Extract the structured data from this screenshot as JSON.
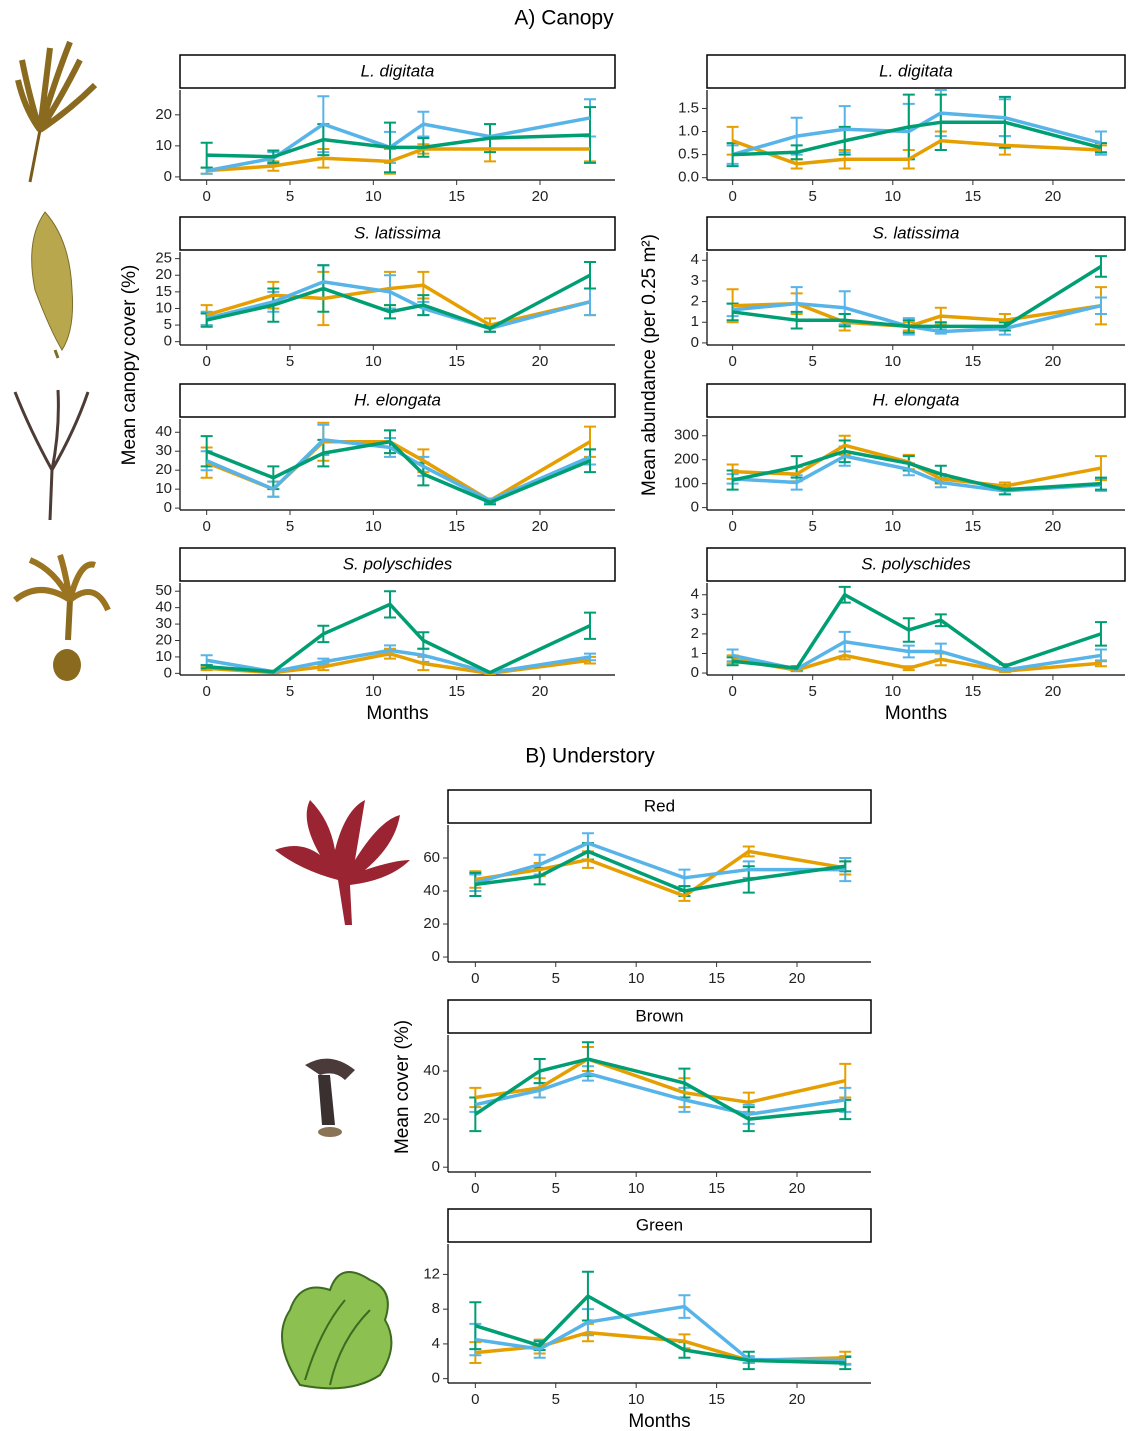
{
  "headings": {
    "canopy": "A) Canopy",
    "understory": "B) Understory"
  },
  "ylabels": {
    "canopy_cover": "Mean canopy cover (%)",
    "canopy_abundance": "Mean abundance (per 0.25 m²)",
    "understory_cover": "Mean cover (%)"
  },
  "chart_data": [
    {
      "type": "line",
      "title": "L. digitata",
      "x": [
        0,
        4,
        7,
        11,
        13,
        17,
        23
      ],
      "xlim": [
        -1.6,
        24.5
      ],
      "xticks": [
        0,
        5,
        10,
        15,
        20
      ],
      "ylim": [
        -1,
        28
      ],
      "yticks": [
        0,
        10,
        20
      ],
      "series": [
        {
          "color": "#E69F00",
          "values": [
            2,
            3.5,
            6,
            5,
            9,
            9,
            9
          ],
          "errors": [
            1,
            1.5,
            3,
            4,
            1.5,
            4,
            4
          ]
        },
        {
          "color": "#56B4E9",
          "values": [
            2,
            6,
            17,
            9.5,
            17,
            13,
            19
          ],
          "errors": [
            1,
            2,
            9,
            5,
            4,
            4,
            6
          ]
        },
        {
          "color": "#009E73",
          "values": [
            7,
            6.5,
            12,
            9.5,
            9.5,
            12.5,
            13.5
          ],
          "errors": [
            4,
            2,
            5,
            8,
            3,
            4.5,
            9
          ]
        }
      ]
    },
    {
      "type": "line",
      "title": "L. digitata",
      "x": [
        0,
        4,
        7,
        11,
        13,
        17,
        23
      ],
      "xlim": [
        -1.6,
        24.5
      ],
      "xticks": [
        0,
        5,
        10,
        15,
        20
      ],
      "ylim": [
        -0.05,
        1.9
      ],
      "yticks": [
        {
          "value": 0,
          "label": "0.0"
        },
        0.5,
        {
          "value": 1,
          "label": "1.0"
        },
        1.5
      ],
      "series": [
        {
          "color": "#E69F00",
          "values": [
            0.8,
            0.3,
            0.4,
            0.4,
            0.8,
            0.7,
            0.6
          ],
          "errors": [
            0.3,
            0.1,
            0.2,
            0.2,
            0.2,
            0.2,
            0.1
          ]
        },
        {
          "color": "#56B4E9",
          "values": [
            0.5,
            0.9,
            1.05,
            1.0,
            1.4,
            1.3,
            0.75
          ],
          "errors": [
            0.2,
            0.4,
            0.5,
            0.6,
            0.5,
            0.4,
            0.25
          ]
        },
        {
          "color": "#009E73",
          "values": [
            0.5,
            0.55,
            0.8,
            1.1,
            1.2,
            1.2,
            0.65
          ],
          "errors": [
            0.25,
            0.15,
            0.3,
            0.7,
            0.6,
            0.55,
            0.1
          ]
        }
      ]
    },
    {
      "type": "line",
      "title": "S. latissima",
      "x": [
        0,
        4,
        7,
        11,
        13,
        17,
        23
      ],
      "xlim": [
        -1.6,
        24.5
      ],
      "xticks": [
        0,
        5,
        10,
        15,
        20
      ],
      "ylim": [
        -1,
        27
      ],
      "yticks": [
        0,
        5,
        10,
        15,
        20,
        25
      ],
      "series": [
        {
          "color": "#E69F00",
          "values": [
            8,
            14,
            13,
            16,
            17,
            5,
            12
          ],
          "errors": [
            3,
            4,
            8,
            5,
            4,
            2,
            4
          ]
        },
        {
          "color": "#56B4E9",
          "values": [
            7,
            12,
            18,
            15,
            10,
            4,
            12
          ],
          "errors": [
            2,
            3,
            5,
            5,
            2,
            1,
            4
          ]
        },
        {
          "color": "#009E73",
          "values": [
            6.5,
            11,
            16,
            9,
            11,
            4,
            20
          ],
          "errors": [
            2,
            5,
            7,
            2,
            3,
            1,
            4
          ]
        }
      ]
    },
    {
      "type": "line",
      "title": "S. latissima",
      "x": [
        0,
        4,
        7,
        11,
        13,
        17,
        23
      ],
      "xlim": [
        -1.6,
        24.5
      ],
      "xticks": [
        0,
        5,
        10,
        15,
        20
      ],
      "ylim": [
        -0.1,
        4.4
      ],
      "yticks": [
        0,
        1,
        2,
        3,
        4
      ],
      "series": [
        {
          "color": "#E69F00",
          "values": [
            1.8,
            1.9,
            1.0,
            0.8,
            1.3,
            1.1,
            1.8
          ],
          "errors": [
            0.8,
            0.5,
            0.4,
            0.2,
            0.4,
            0.3,
            0.9
          ]
        },
        {
          "color": "#56B4E9",
          "values": [
            1.6,
            1.9,
            1.7,
            0.8,
            0.55,
            0.7,
            1.8
          ],
          "errors": [
            0.3,
            0.8,
            0.8,
            0.4,
            0.1,
            0.3,
            0.4
          ]
        },
        {
          "color": "#009E73",
          "values": [
            1.5,
            1.1,
            1.1,
            0.8,
            0.8,
            0.8,
            3.7
          ],
          "errors": [
            0.4,
            0.4,
            0.3,
            0.3,
            0.2,
            0.2,
            0.5
          ]
        }
      ]
    },
    {
      "type": "line",
      "title": "H. elongata",
      "x": [
        0,
        4,
        7,
        11,
        13,
        17,
        23
      ],
      "xlim": [
        -1.6,
        24.5
      ],
      "xticks": [
        0,
        5,
        10,
        15,
        20
      ],
      "ylim": [
        -1,
        47
      ],
      "yticks": [
        0,
        10,
        20,
        30,
        40
      ],
      "series": [
        {
          "color": "#E69F00",
          "values": [
            24,
            10,
            35,
            35,
            25,
            4,
            35
          ],
          "errors": [
            8,
            4,
            10,
            6,
            6,
            1,
            8
          ]
        },
        {
          "color": "#56B4E9",
          "values": [
            25,
            10,
            36,
            32,
            22,
            4,
            27
          ],
          "errors": [
            5,
            4,
            8,
            5,
            5,
            1,
            4
          ]
        },
        {
          "color": "#009E73",
          "values": [
            30,
            16,
            29,
            35,
            18,
            3,
            25
          ],
          "errors": [
            8,
            6,
            7,
            6,
            6,
            1,
            6
          ]
        }
      ]
    },
    {
      "type": "line",
      "title": "H. elongata",
      "x": [
        0,
        4,
        7,
        11,
        13,
        17,
        23
      ],
      "xlim": [
        -1.6,
        24.5
      ],
      "xticks": [
        0,
        5,
        10,
        15,
        20
      ],
      "ylim": [
        -10,
        370
      ],
      "yticks": [
        0,
        100,
        200,
        300
      ],
      "series": [
        {
          "color": "#E69F00",
          "values": [
            150,
            140,
            260,
            190,
            120,
            90,
            165
          ],
          "errors": [
            30,
            30,
            40,
            30,
            20,
            15,
            50
          ]
        },
        {
          "color": "#56B4E9",
          "values": [
            120,
            105,
            215,
            160,
            105,
            70,
            95
          ],
          "errors": [
            20,
            30,
            40,
            25,
            20,
            15,
            25
          ]
        },
        {
          "color": "#009E73",
          "values": [
            115,
            170,
            235,
            185,
            140,
            75,
            100
          ],
          "errors": [
            40,
            45,
            45,
            30,
            35,
            20,
            25
          ]
        }
      ]
    },
    {
      "type": "line",
      "title": "S. polyschides",
      "xlabel": "Months",
      "x": [
        0,
        4,
        7,
        11,
        13,
        17,
        23
      ],
      "xlim": [
        -1.6,
        24.5
      ],
      "xticks": [
        0,
        5,
        10,
        15,
        20
      ],
      "ylim": [
        -1,
        55
      ],
      "yticks": [
        0,
        10,
        20,
        30,
        40,
        50
      ],
      "series": [
        {
          "color": "#E69F00",
          "values": [
            3,
            0.5,
            4,
            12,
            6,
            0,
            8
          ],
          "errors": [
            1,
            0.3,
            2,
            3,
            4,
            0.3,
            2
          ]
        },
        {
          "color": "#56B4E9",
          "values": [
            8,
            1,
            7,
            14,
            11,
            0.5,
            10
          ],
          "errors": [
            3,
            0.5,
            2,
            3,
            4,
            0.3,
            2
          ]
        },
        {
          "color": "#009E73",
          "values": [
            4,
            1,
            24,
            42,
            20,
            0.5,
            29
          ],
          "errors": [
            1,
            0.5,
            5,
            8,
            5,
            0.3,
            8
          ]
        }
      ]
    },
    {
      "type": "line",
      "title": "S. polyschides",
      "xlabel": "Months",
      "x": [
        0,
        4,
        7,
        11,
        13,
        17,
        23
      ],
      "xlim": [
        -1.6,
        24.5
      ],
      "xticks": [
        0,
        5,
        10,
        15,
        20
      ],
      "ylim": [
        -0.1,
        4.6
      ],
      "yticks": [
        0,
        1,
        2,
        3,
        4
      ],
      "series": [
        {
          "color": "#E69F00",
          "values": [
            0.7,
            0.15,
            0.9,
            0.25,
            0.7,
            0.1,
            0.5
          ],
          "errors": [
            0.2,
            0.05,
            0.2,
            0.1,
            0.3,
            0.05,
            0.15
          ]
        },
        {
          "color": "#56B4E9",
          "values": [
            0.9,
            0.2,
            1.6,
            1.1,
            1.1,
            0.15,
            0.9
          ],
          "errors": [
            0.3,
            0.1,
            0.5,
            0.3,
            0.4,
            0.05,
            0.3
          ]
        },
        {
          "color": "#009E73",
          "values": [
            0.6,
            0.25,
            4.0,
            2.2,
            2.7,
            0.35,
            2.0
          ],
          "errors": [
            0.2,
            0.1,
            0.4,
            0.6,
            0.3,
            0.1,
            0.6
          ]
        }
      ]
    },
    {
      "type": "line",
      "title": "Red",
      "x": [
        0,
        4,
        7,
        13,
        17,
        23
      ],
      "xlim": [
        -1.7,
        24.6
      ],
      "xticks": [
        0,
        5,
        10,
        15,
        20
      ],
      "ylim": [
        -3,
        80
      ],
      "yticks": [
        0,
        20,
        40,
        60
      ],
      "series": [
        {
          "color": "#E69F00",
          "values": [
            47,
            53,
            59,
            37,
            64,
            54
          ],
          "errors": [
            5,
            4,
            5,
            3,
            3,
            4
          ]
        },
        {
          "color": "#56B4E9",
          "values": [
            45,
            56,
            69,
            48,
            53,
            53
          ],
          "errors": [
            5,
            6,
            6,
            5,
            5,
            7
          ]
        },
        {
          "color": "#009E73",
          "values": [
            44,
            49,
            64,
            40,
            47,
            55
          ],
          "errors": [
            7,
            5,
            5,
            3,
            8,
            3
          ]
        }
      ]
    },
    {
      "type": "line",
      "title": "Brown",
      "x": [
        0,
        4,
        7,
        13,
        17,
        23
      ],
      "xlim": [
        -1.7,
        24.6
      ],
      "xticks": [
        0,
        5,
        10,
        15,
        20
      ],
      "ylim": [
        -2,
        55
      ],
      "yticks": [
        0,
        20,
        40
      ],
      "series": [
        {
          "color": "#E69F00",
          "values": [
            29,
            33,
            45,
            31,
            27,
            36
          ],
          "errors": [
            4,
            4,
            5,
            6,
            4,
            7
          ]
        },
        {
          "color": "#56B4E9",
          "values": [
            26,
            32,
            39,
            28,
            22,
            28
          ],
          "errors": [
            3,
            3,
            3,
            5,
            4,
            5
          ]
        },
        {
          "color": "#009E73",
          "values": [
            22,
            40,
            45,
            35,
            20,
            24
          ],
          "errors": [
            7,
            5,
            7,
            6,
            5,
            4
          ]
        }
      ]
    },
    {
      "type": "line",
      "title": "Green",
      "xlabel": "Months",
      "x": [
        0,
        4,
        7,
        13,
        17,
        23
      ],
      "xlim": [
        -1.7,
        24.6
      ],
      "xticks": [
        0,
        5,
        10,
        15,
        20
      ],
      "ylim": [
        -0.5,
        15.5
      ],
      "yticks": [
        0,
        4,
        8,
        12
      ],
      "series": [
        {
          "color": "#E69F00",
          "values": [
            3,
            3.7,
            5.3,
            4.3,
            2.1,
            2.4
          ],
          "errors": [
            1.2,
            0.8,
            1,
            0.8,
            0.3,
            0.7
          ]
        },
        {
          "color": "#56B4E9",
          "values": [
            4.5,
            3.4,
            6.5,
            8.3,
            2.2,
            2.1
          ],
          "errors": [
            1.8,
            1,
            1.5,
            1.3,
            0.4,
            0.5
          ]
        },
        {
          "color": "#009E73",
          "values": [
            6.1,
            3.8,
            9.5,
            3.3,
            2.1,
            1.8
          ],
          "errors": [
            2.7,
            0.5,
            2.8,
            0.9,
            1,
            0.7
          ]
        }
      ]
    }
  ]
}
